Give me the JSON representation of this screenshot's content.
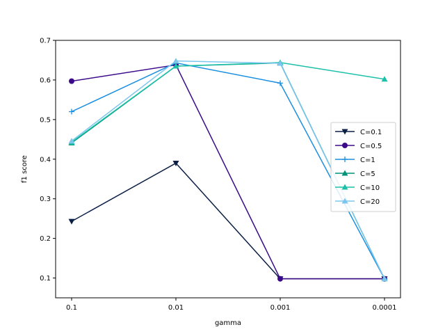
{
  "chart_data": {
    "type": "line",
    "title": "",
    "xlabel": "gamma",
    "ylabel": "f1 score",
    "categories": [
      "0.1",
      "0.01",
      "0.001",
      "0.0001"
    ],
    "ylim": [
      0.05,
      0.7
    ],
    "yticks": [
      0.1,
      0.2,
      0.3,
      0.4,
      0.5,
      0.6,
      0.7
    ],
    "grid": false,
    "legend_position": "center-right",
    "series": [
      {
        "name": "C=0.1",
        "values": [
          0.243,
          0.39,
          0.098,
          0.098
        ],
        "color": "#0b1f45",
        "marker": "triangle-down"
      },
      {
        "name": "C=0.5",
        "values": [
          0.597,
          0.638,
          0.098,
          0.098
        ],
        "color": "#3b0a8a",
        "marker": "circle"
      },
      {
        "name": "C=1",
        "values": [
          0.52,
          0.643,
          0.592,
          0.098
        ],
        "color": "#1a8fe0",
        "marker": "plus"
      },
      {
        "name": "C=5",
        "values": [
          0.441,
          0.635,
          0.643,
          0.098
        ],
        "color": "#00927a",
        "marker": "triangle-up"
      },
      {
        "name": "C=10",
        "values": [
          0.443,
          0.635,
          0.644,
          0.602
        ],
        "color": "#1cc0a8",
        "marker": "triangle-up"
      },
      {
        "name": "C=20",
        "values": [
          0.446,
          0.648,
          0.642,
          0.098
        ],
        "color": "#7cc6ee",
        "marker": "triangle-up"
      }
    ]
  }
}
